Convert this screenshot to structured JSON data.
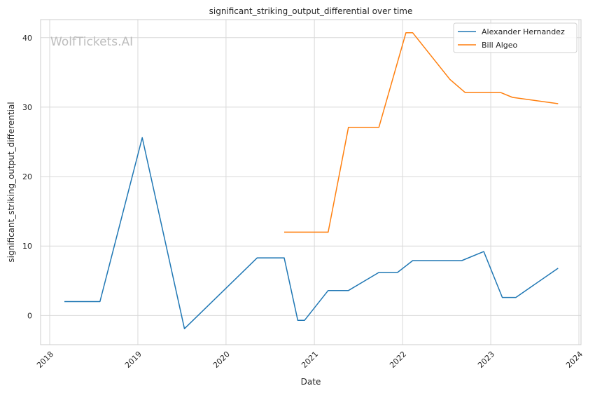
{
  "chart_data": {
    "type": "line",
    "title": "significant_striking_output_differential over time",
    "xlabel": "Date",
    "ylabel": "significant_striking_output_differential",
    "xlim": [
      "2018-01-01",
      "2024-01-01"
    ],
    "ylim": [
      -4.2,
      42.6
    ],
    "x_ticks": [
      "2018",
      "2019",
      "2020",
      "2021",
      "2022",
      "2023",
      "2024"
    ],
    "y_ticks": [
      0,
      10,
      20,
      30,
      40
    ],
    "grid": true,
    "legend_position": "top-right",
    "watermark": "WolfTickets.AI",
    "series": [
      {
        "name": "Alexander Hernandez",
        "color": "#1f77b4",
        "points": [
          [
            "2018-03-03",
            2.0
          ],
          [
            "2018-07-28",
            2.0
          ],
          [
            "2019-01-19",
            25.6
          ],
          [
            "2019-07-13",
            -1.9
          ],
          [
            "2020-05-09",
            8.3
          ],
          [
            "2020-08-29",
            8.3
          ],
          [
            "2020-10-24",
            -0.7
          ],
          [
            "2020-11-21",
            -0.7
          ],
          [
            "2021-02-27",
            3.6
          ],
          [
            "2021-05-22",
            3.6
          ],
          [
            "2021-09-25",
            6.2
          ],
          [
            "2021-12-11",
            6.2
          ],
          [
            "2022-02-12",
            7.9
          ],
          [
            "2022-09-03",
            7.9
          ],
          [
            "2022-12-03",
            9.2
          ],
          [
            "2023-02-18",
            2.6
          ],
          [
            "2023-04-15",
            2.6
          ],
          [
            "2023-10-07",
            6.8
          ]
        ]
      },
      {
        "name": "Bill Algeo",
        "color": "#ff7f0e",
        "points": [
          [
            "2020-08-29",
            12.0
          ],
          [
            "2021-02-27",
            12.0
          ],
          [
            "2021-05-22",
            27.1
          ],
          [
            "2021-09-25",
            27.1
          ],
          [
            "2022-01-15",
            40.7
          ],
          [
            "2022-02-12",
            40.7
          ],
          [
            "2022-07-16",
            34.0
          ],
          [
            "2022-09-17",
            32.1
          ],
          [
            "2023-02-11",
            32.1
          ],
          [
            "2023-04-01",
            31.4
          ],
          [
            "2023-10-07",
            30.5
          ]
        ]
      }
    ]
  }
}
